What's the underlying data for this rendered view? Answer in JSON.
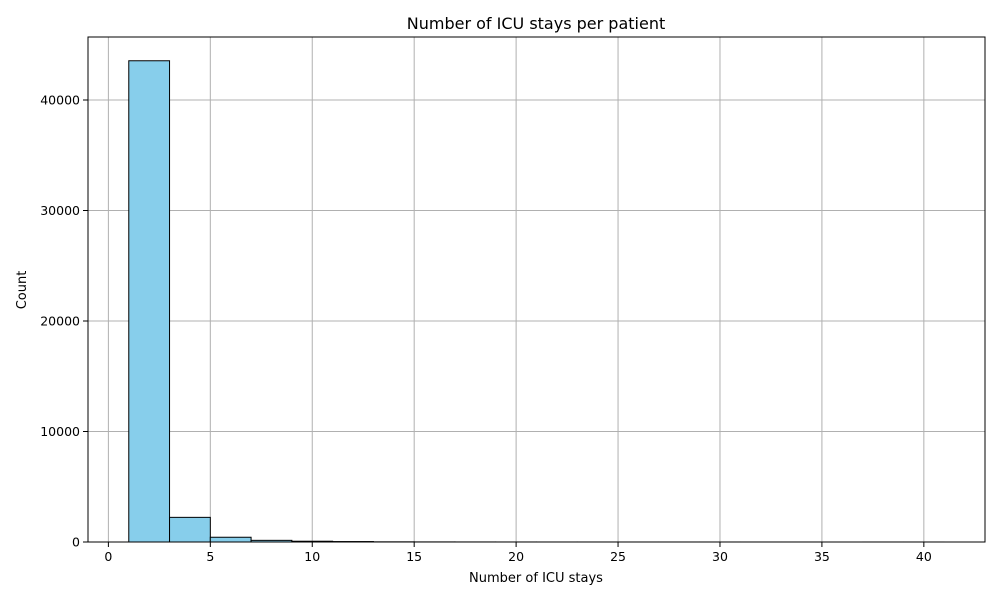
{
  "chart_data": {
    "type": "histogram",
    "title": "Number of ICU stays per patient",
    "xlabel": "Number of ICU stays",
    "ylabel": "Count",
    "xlim": [
      -1,
      43
    ],
    "ylim": [
      0,
      45700
    ],
    "xticks": [
      0,
      5,
      10,
      15,
      20,
      25,
      30,
      35,
      40
    ],
    "yticks": [
      0,
      10000,
      20000,
      30000,
      40000
    ],
    "grid": true,
    "bar_color": "#87ceeb",
    "edge_color": "#000000",
    "bins": [
      {
        "start": 1,
        "end": 3,
        "count": 43550
      },
      {
        "start": 3,
        "end": 5,
        "count": 2230
      },
      {
        "start": 5,
        "end": 7,
        "count": 430
      },
      {
        "start": 7,
        "end": 9,
        "count": 150
      },
      {
        "start": 9,
        "end": 11,
        "count": 70
      },
      {
        "start": 11,
        "end": 13,
        "count": 40
      },
      {
        "start": 13,
        "end": 15,
        "count": 15
      },
      {
        "start": 15,
        "end": 17,
        "count": 8
      },
      {
        "start": 17,
        "end": 19,
        "count": 5
      },
      {
        "start": 19,
        "end": 21,
        "count": 3
      },
      {
        "start": 21,
        "end": 23,
        "count": 2
      },
      {
        "start": 23,
        "end": 25,
        "count": 2
      },
      {
        "start": 25,
        "end": 27,
        "count": 1
      },
      {
        "start": 27,
        "end": 29,
        "count": 1
      },
      {
        "start": 29,
        "end": 31,
        "count": 1
      },
      {
        "start": 31,
        "end": 33,
        "count": 1
      },
      {
        "start": 33,
        "end": 35,
        "count": 1
      },
      {
        "start": 35,
        "end": 37,
        "count": 0
      },
      {
        "start": 37,
        "end": 39,
        "count": 1
      },
      {
        "start": 39,
        "end": 41,
        "count": 1
      }
    ]
  }
}
